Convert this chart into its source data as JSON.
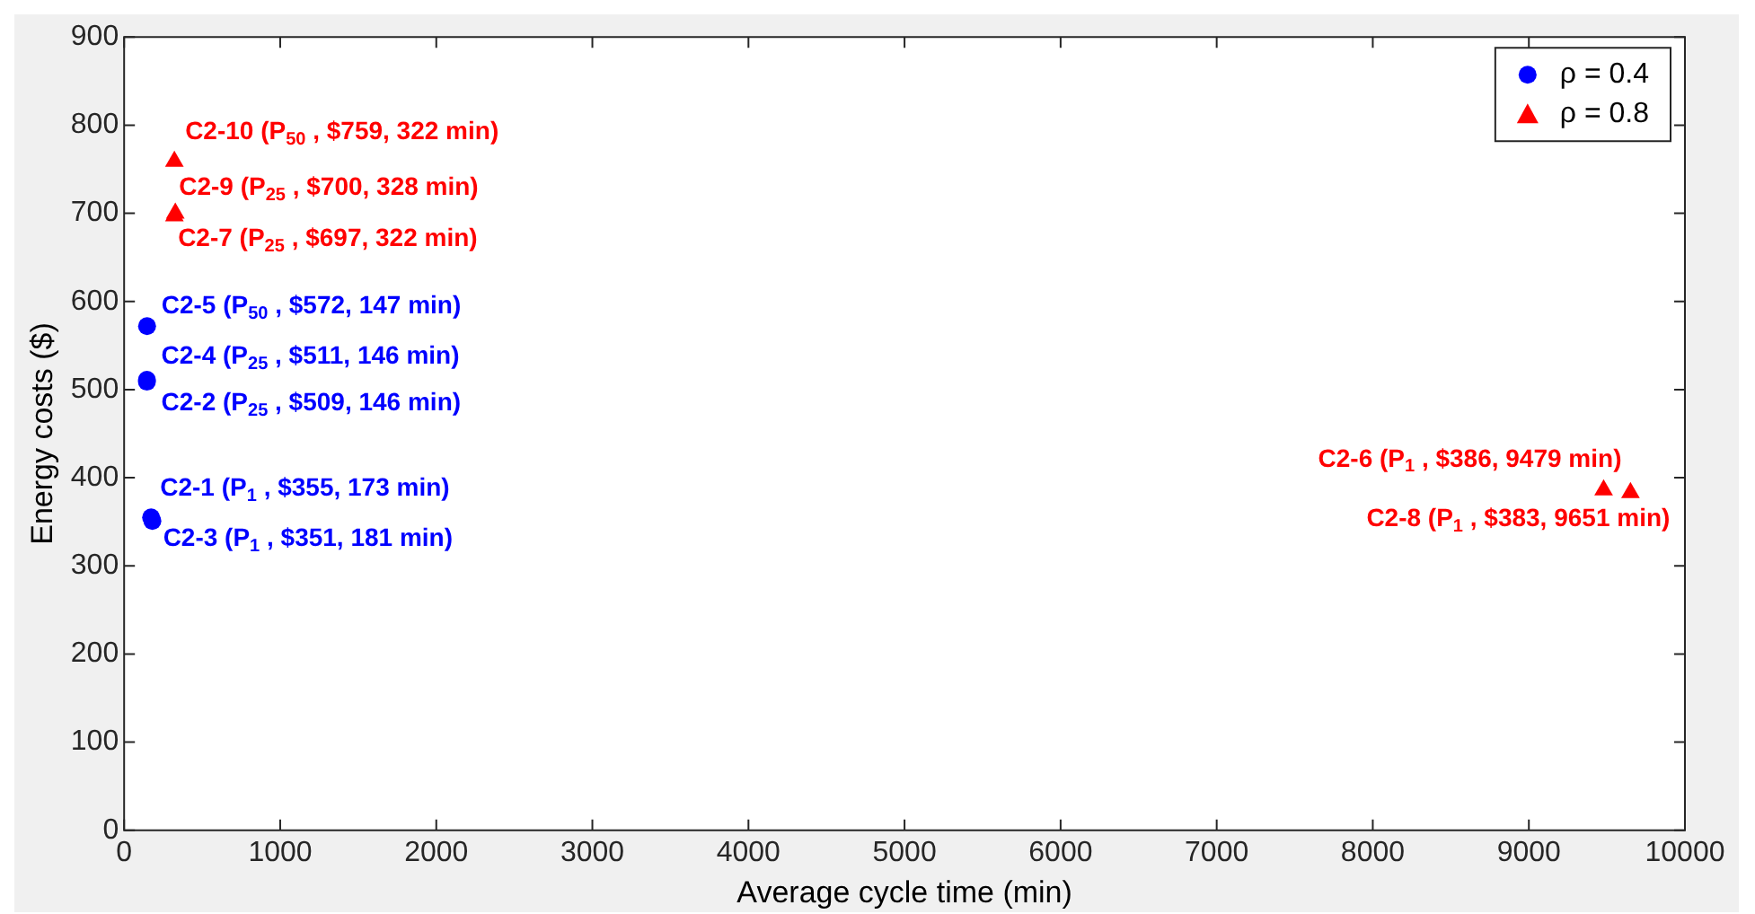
{
  "chart_data": {
    "type": "scatter",
    "xlabel": "Average cycle time (min)",
    "ylabel": "Energy costs ($)",
    "xlim": [
      0,
      10000
    ],
    "xticks": [
      0,
      1000,
      2000,
      3000,
      4000,
      5000,
      6000,
      7000,
      8000,
      9000,
      10000
    ],
    "ylim": [
      0,
      900
    ],
    "yticks": [
      0,
      100,
      200,
      300,
      400,
      500,
      600,
      700,
      800,
      900
    ],
    "grid": false,
    "legend": "top right",
    "series": [
      {
        "name": "ρ = 0.4",
        "color": "#0000ff",
        "marker": "circle",
        "x": [
          146,
          146,
          147,
          173,
          181
        ],
        "values": [
          509,
          511,
          572,
          355,
          351
        ]
      },
      {
        "name": "ρ = 0.8",
        "color": "#ff0000",
        "marker": "triangle",
        "x": [
          322,
          328,
          322,
          9479,
          9651
        ],
        "values": [
          697,
          700,
          759,
          386,
          383
        ]
      }
    ],
    "annotations": [
      {
        "text": "C2-10 (P$_{50}$ , $759, 322 min)",
        "x": 322,
        "y": 759
      },
      {
        "text": "C2-9 (P$_{25}$ , $700, 328 min)",
        "x": 328,
        "y": 700
      },
      {
        "text": "C2-7 (P$_{25}$ , $697, 322 min)",
        "x": 322,
        "y": 697
      },
      {
        "text": "C2-5 (P$_{50}$ , $572, 147 min)",
        "x": 147,
        "y": 572
      },
      {
        "text": "C2-4 (P$_{25}$ , $511, 146 min)",
        "x": 146,
        "y": 511
      },
      {
        "text": "C2-2 (P$_{25}$ , $509, 146 min)",
        "x": 146,
        "y": 509
      },
      {
        "text": "C2-1 (P$_{1}$ , $355, 173 min)",
        "x": 173,
        "y": 355
      },
      {
        "text": "C2-3 (P$_{1}$ , $351, 181 min)",
        "x": 181,
        "y": 351
      },
      {
        "text": "C2-6 (P$_{1}$ , $386, 9479 min)",
        "x": 9479,
        "y": 386
      },
      {
        "text": "C2-8 (P$_{1}$ , $383, 9651 min)",
        "x": 9651,
        "y": 383
      }
    ]
  }
}
